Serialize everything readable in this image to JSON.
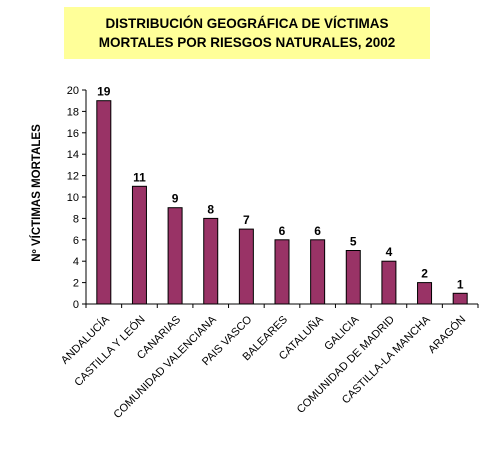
{
  "chart_data": {
    "type": "bar",
    "title_lines": [
      "DISTRIBUCIÓN GEOGRÁFICA DE VÍCTIMAS",
      "MORTALES POR RIESGOS NATURALES, 2002"
    ],
    "ylabel": "Nº VÍCTIMAS MORTALES",
    "categories": [
      "ANDALUCÍA",
      "CASTILLA Y LEÓN",
      "CANARIAS",
      "COMUNIDAD VALENCIANA",
      "PAIS VASCO",
      "BALEARES",
      "CATALUÑA",
      "GALICIA",
      "COMUNIDAD DE MADRID",
      "CASTILLA-LA MANCHA",
      "ARAGÓN"
    ],
    "values": [
      19,
      11,
      9,
      8,
      7,
      6,
      6,
      5,
      4,
      2,
      1
    ],
    "ylim": [
      0,
      20
    ],
    "yticks": [
      0,
      2,
      4,
      6,
      8,
      10,
      12,
      14,
      16,
      18,
      20
    ],
    "grid": false,
    "legend": "none",
    "colors": {
      "bar": "#993366",
      "title_background": "#ffff99",
      "axis": "#000000"
    }
  }
}
